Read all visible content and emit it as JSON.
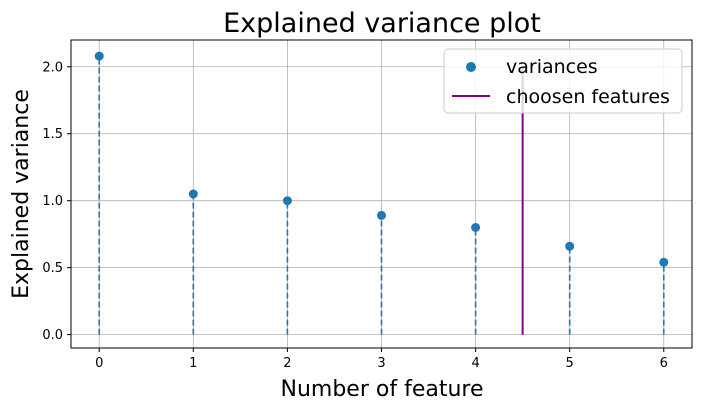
{
  "chart_data": {
    "type": "scatter",
    "title": "Explained variance plot",
    "xlabel": "Number of feature",
    "ylabel": "Explained variance",
    "xlim": [
      -0.3,
      6.3
    ],
    "ylim": [
      -0.1,
      2.2
    ],
    "x_ticks": [
      0,
      1,
      2,
      3,
      4,
      5,
      6
    ],
    "x_tick_labels": [
      "0",
      "1",
      "2",
      "3",
      "4",
      "5",
      "6"
    ],
    "y_ticks": [
      0.0,
      0.5,
      1.0,
      1.5,
      2.0
    ],
    "y_tick_labels": [
      "0.0",
      "0.5",
      "1.0",
      "1.5",
      "2.0"
    ],
    "grid": true,
    "legend_position": "top-right",
    "series": [
      {
        "name": "variances",
        "kind": "scatter with dashed stems",
        "color": "#1f77b4",
        "x": [
          0,
          1,
          2,
          3,
          4,
          5,
          6
        ],
        "y": [
          2.08,
          1.05,
          1.0,
          0.89,
          0.8,
          0.66,
          0.54
        ]
      },
      {
        "name": "choosen features",
        "kind": "vertical line",
        "color": "#800080",
        "x": 4.5,
        "y_range": [
          0.0,
          2.0
        ]
      }
    ]
  }
}
